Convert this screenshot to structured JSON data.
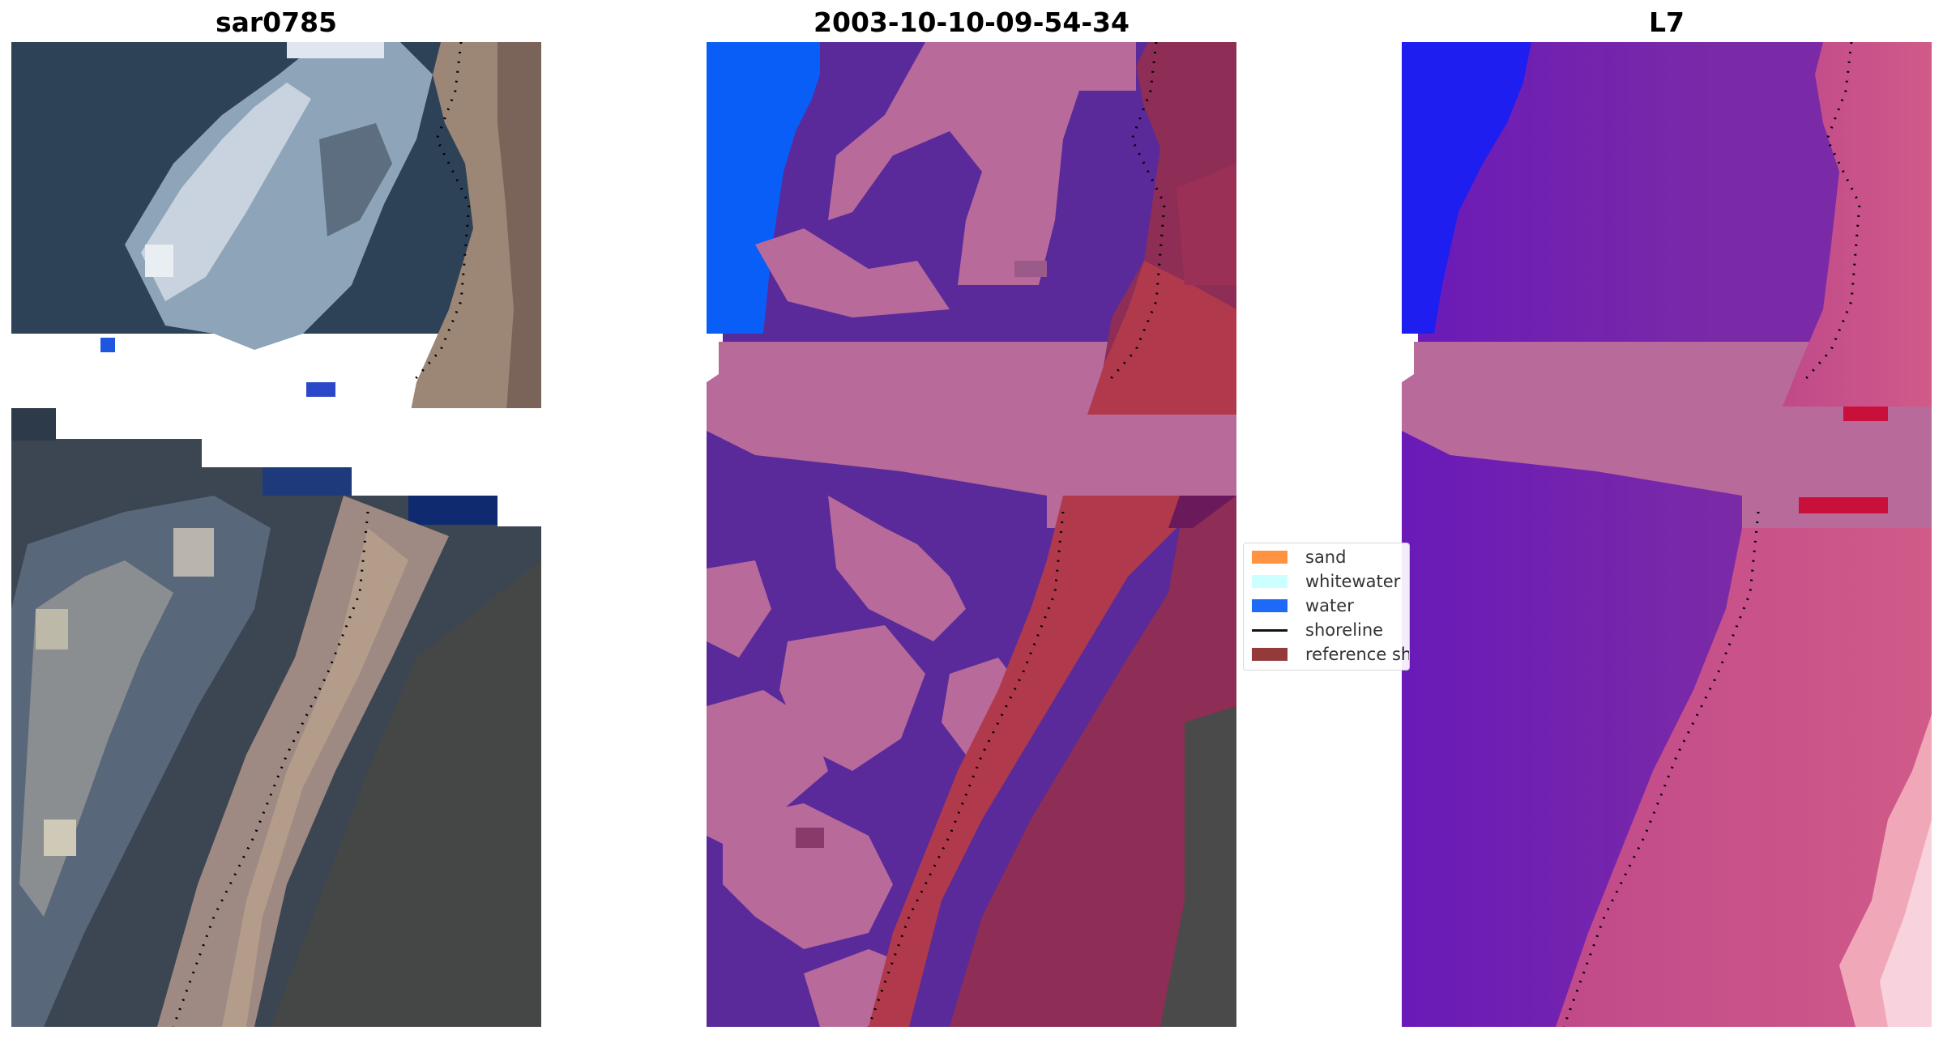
{
  "panels": [
    {
      "title": "sar0785",
      "image": "false-color-satellite-tile"
    },
    {
      "title": "2003-10-10-09-54-34",
      "image": "classified-satellite-tile"
    },
    {
      "title": "L7",
      "image": "index-satellite-tile"
    }
  ],
  "legend": {
    "items": [
      {
        "label": "sand",
        "color": "#ff8a33"
      },
      {
        "label": "whitewater",
        "color": "#c8ffff"
      },
      {
        "label": "water",
        "color": "#0a5ef8"
      },
      {
        "label": "shoreline",
        "color": "#000000"
      },
      {
        "label": "reference shoreline buffer",
        "color": "#8b2a2a"
      }
    ]
  },
  "colors": {
    "dark_veg": "#2d4256",
    "sand_true": "#9c8676",
    "class_land": "#5a2a9a",
    "class_other": "#b86a9a",
    "class_water": "#0a5ef8",
    "class_buffer": "#b03a4c",
    "index_low": "#6a1ab8",
    "index_high": "#d04a8a"
  }
}
